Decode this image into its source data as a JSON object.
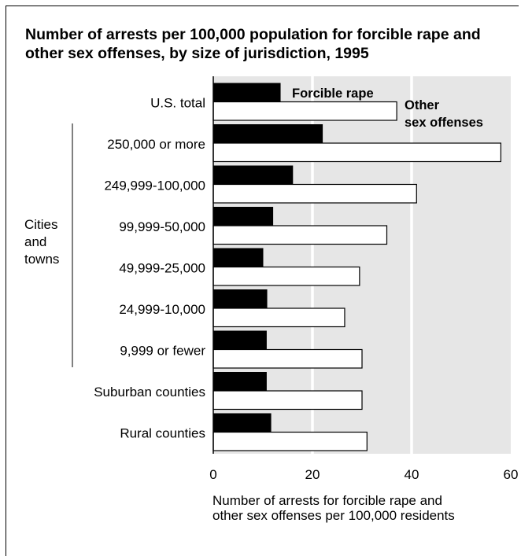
{
  "chart_data": {
    "type": "bar",
    "orientation": "horizontal",
    "title": "Number of arrests per 100,000 population for forcible rape and other sex offenses, by size of jurisdiction, 1995",
    "xlabel_lines": [
      "Number of arrests for forcible rape and",
      "other sex offenses per 100,000 residents"
    ],
    "xlim": [
      0,
      60
    ],
    "xticks": [
      0,
      20,
      40,
      60
    ],
    "grid": "vertical gridlines at 20 and 40",
    "group_label": "Cities and towns",
    "categories": [
      "U.S. total",
      "250,000 or more",
      "249,999-100,000",
      "99,999-50,000",
      "49,999-25,000",
      "24,999-10,000",
      "9,999 or fewer",
      "Suburban counties",
      "Rural counties"
    ],
    "series": [
      {
        "name": "Forcible rape",
        "color": "#000000",
        "values": [
          13.5,
          22,
          16,
          12,
          10,
          10.8,
          10.7,
          10.7,
          11.6
        ]
      },
      {
        "name": "Other sex offenses",
        "color": "#ffffff",
        "values": [
          37,
          58,
          41,
          35,
          29.5,
          26.5,
          30,
          30,
          31
        ]
      }
    ],
    "legend": {
      "position": "top-right",
      "labels": [
        "Forcible rape",
        "Other sex offenses"
      ]
    },
    "background_color": "#e6e6e6"
  }
}
